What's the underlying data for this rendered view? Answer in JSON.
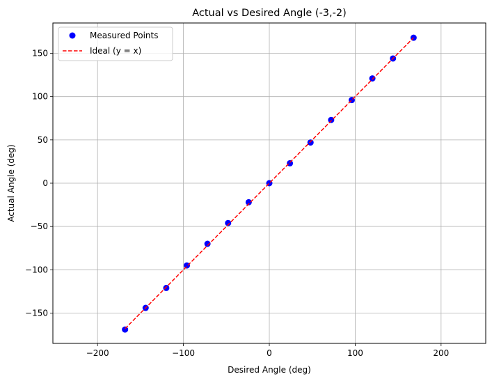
{
  "chart_data": {
    "type": "scatter",
    "title": "Actual vs Desired Angle (-3,-2)",
    "xlabel": "Desired Angle (deg)",
    "ylabel": "Actual Angle (deg)",
    "xlim": [
      -252,
      252
    ],
    "ylim": [
      -185,
      185
    ],
    "xticks": [
      -200,
      -100,
      0,
      100,
      200
    ],
    "yticks": [
      -150,
      -100,
      -50,
      0,
      50,
      100,
      150
    ],
    "xtick_labels": [
      "−200",
      "−100",
      "0",
      "100",
      "200"
    ],
    "ytick_labels": [
      "−150",
      "−100",
      "−50",
      "0",
      "50",
      "100",
      "150"
    ],
    "grid": true,
    "legend_position": "top-left",
    "series": [
      {
        "name": "Measured Points",
        "kind": "scatter",
        "color": "#0000ff",
        "x": [
          -168,
          -144,
          -120,
          -96,
          -72,
          -48,
          -24,
          0,
          24,
          48,
          72,
          96,
          120,
          144,
          168
        ],
        "y": [
          -169,
          -144,
          -121,
          -95,
          -70,
          -46,
          -22,
          0,
          23,
          47,
          73,
          96,
          121,
          144,
          168
        ]
      },
      {
        "name": "Ideal (y = x)",
        "kind": "line",
        "style": "dashed",
        "color": "#ff0000",
        "x": [
          -168,
          168
        ],
        "y": [
          -168,
          168
        ]
      }
    ]
  }
}
